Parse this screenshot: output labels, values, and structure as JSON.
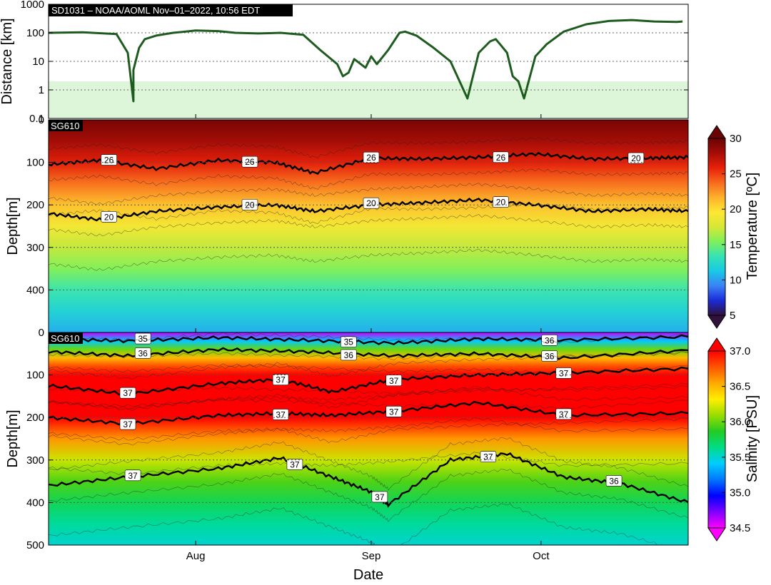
{
  "chart_data": [
    {
      "type": "line",
      "name": "distance",
      "header": "SD1031   –   NOAA/AOML   Nov–01–2022, 10:56 EDT",
      "ylabel": "Distance [km]",
      "yscale": "log",
      "ylim": [
        0.1,
        1000
      ],
      "yticks": [
        "0.1",
        "1",
        "10",
        "100",
        "1000"
      ],
      "xlim": [
        "2022-07-06",
        "2022-10-27"
      ],
      "shaded_band_km": [
        0.1,
        2
      ],
      "line_color": "#1e5b1e",
      "band_color": "#ddf5d8",
      "x": [
        "2022-07-06",
        "2022-07-12",
        "2022-07-18",
        "2022-07-20",
        "2022-07-21",
        "2022-07-21",
        "2022-07-22",
        "2022-07-23",
        "2022-07-25",
        "2022-07-28",
        "2022-08-01",
        "2022-08-05",
        "2022-08-08",
        "2022-08-12",
        "2022-08-16",
        "2022-08-20",
        "2022-08-23",
        "2022-08-26",
        "2022-08-27",
        "2022-08-28",
        "2022-08-29",
        "2022-08-31",
        "2022-09-01",
        "2022-09-02",
        "2022-09-04",
        "2022-09-06",
        "2022-09-07",
        "2022-09-09",
        "2022-09-12",
        "2022-09-15",
        "2022-09-18",
        "2022-09-20",
        "2022-09-22",
        "2022-09-23",
        "2022-09-24",
        "2022-09-25",
        "2022-09-26",
        "2022-09-27",
        "2022-09-28",
        "2022-09-30",
        "2022-10-02",
        "2022-10-05",
        "2022-10-09",
        "2022-10-13",
        "2022-10-17",
        "2022-10-21",
        "2022-10-25",
        "2022-10-26"
      ],
      "values": [
        100,
        105,
        90,
        20,
        0.4,
        5,
        30,
        60,
        80,
        100,
        120,
        115,
        100,
        95,
        100,
        85,
        25,
        8,
        3,
        4,
        12,
        6,
        15,
        8,
        25,
        100,
        110,
        80,
        30,
        10,
        0.5,
        20,
        50,
        60,
        35,
        20,
        3,
        2,
        0.5,
        15,
        40,
        110,
        200,
        260,
        280,
        250,
        240,
        250
      ]
    },
    {
      "type": "heatmap",
      "name": "temperature",
      "tag": "SG610",
      "ylabel": "Depth[m]",
      "xlabel": "",
      "ylim": [
        0,
        500
      ],
      "y_inverted": true,
      "yticks": [
        "0",
        "100",
        "200",
        "300",
        "400"
      ],
      "colorbar_label": "Temperature [ºC]",
      "colorbar_range": [
        5,
        30
      ],
      "colorbar_ticks": [
        "5",
        "10",
        "15",
        "20",
        "25",
        "30"
      ],
      "colormap": [
        "#30123b",
        "#1b2bd6",
        "#3b82f6",
        "#18c9e6",
        "#36e3b4",
        "#7ff05a",
        "#d7e735",
        "#fee733",
        "#fdb12b",
        "#f76a1d",
        "#e8210a",
        "#a50d07",
        "#6a0303"
      ],
      "profile_depths": [
        0,
        50,
        100,
        150,
        200,
        250,
        300,
        350,
        400,
        450,
        500
      ],
      "profile_temps": [
        29.5,
        28,
        26,
        23.5,
        21,
        19,
        17,
        15.5,
        13.5,
        12,
        10.5
      ],
      "contour_labels": [
        "26",
        "26",
        "26",
        "26",
        "20",
        "20",
        "20",
        "20",
        "20"
      ],
      "contours": [
        {
          "level": 26,
          "bold": true,
          "x": [
            "2022-07-06",
            "2022-07-15",
            "2022-07-25",
            "2022-08-05",
            "2022-08-15",
            "2022-08-22",
            "2022-09-01",
            "2022-09-10",
            "2022-09-20",
            "2022-09-30",
            "2022-10-10",
            "2022-10-20",
            "2022-10-27"
          ],
          "depth": [
            105,
            95,
            115,
            95,
            100,
            125,
            90,
            92,
            88,
            80,
            92,
            90,
            88
          ]
        },
        {
          "level": 20,
          "bold": true,
          "x": [
            "2022-07-06",
            "2022-07-15",
            "2022-07-25",
            "2022-08-05",
            "2022-08-15",
            "2022-08-22",
            "2022-09-01",
            "2022-09-10",
            "2022-09-20",
            "2022-09-30",
            "2022-10-10",
            "2022-10-20",
            "2022-10-27"
          ],
          "depth": [
            220,
            235,
            215,
            205,
            200,
            215,
            200,
            195,
            188,
            200,
            215,
            210,
            215
          ]
        }
      ]
    },
    {
      "type": "heatmap",
      "name": "salinity",
      "tag": "SG610",
      "ylabel": "Depth[m]",
      "xlabel": "Date",
      "ylim": [
        0,
        500
      ],
      "y_inverted": true,
      "yticks": [
        "0",
        "100",
        "200",
        "300",
        "400",
        "500"
      ],
      "xticks": [
        "Aug",
        "Sep",
        "Oct"
      ],
      "xtick_dates": [
        "2022-08-01",
        "2022-09-01",
        "2022-10-01"
      ],
      "colorbar_label": "Salinity [PSU]",
      "colorbar_range": [
        34.5,
        37.0
      ],
      "colorbar_ticks": [
        "34.5",
        "35.0",
        "35.5",
        "36.0",
        "36.5",
        "37.0"
      ],
      "colormap": [
        "#ff00ff",
        "#7f00ff",
        "#0000ff",
        "#0077ff",
        "#00ccff",
        "#00dd88",
        "#22cc22",
        "#99dd00",
        "#ffee00",
        "#ffaa00",
        "#ff5500",
        "#ff0000"
      ],
      "profile_depths": [
        0,
        20,
        40,
        60,
        80,
        100,
        150,
        200,
        250,
        300,
        350,
        400,
        450,
        500
      ],
      "profile_salinity": [
        34.6,
        35.4,
        36.0,
        36.5,
        36.8,
        37.05,
        37.15,
        37.0,
        36.6,
        36.2,
        35.95,
        35.75,
        35.6,
        35.5
      ],
      "contour_labels": [
        "35",
        "35",
        "36",
        "36",
        "36",
        "36",
        "37",
        "37",
        "37",
        "37",
        "37",
        "37",
        "37",
        "37",
        "37",
        "37",
        "37",
        "37",
        "36",
        "36",
        "36",
        "36",
        "36",
        "36",
        "36",
        "36",
        "36"
      ],
      "contours": [
        {
          "level": 35,
          "bold": true,
          "x": [
            "2022-07-06",
            "2022-07-20",
            "2022-08-05",
            "2022-08-20",
            "2022-09-05",
            "2022-09-20",
            "2022-10-05",
            "2022-10-27"
          ],
          "depth": [
            15,
            20,
            12,
            18,
            25,
            15,
            18,
            10
          ]
        },
        {
          "level": 36,
          "bold": true,
          "x": [
            "2022-07-06",
            "2022-07-20",
            "2022-08-05",
            "2022-08-20",
            "2022-09-05",
            "2022-09-20",
            "2022-10-05",
            "2022-10-27"
          ],
          "depth": [
            45,
            55,
            40,
            45,
            55,
            50,
            60,
            42
          ]
        },
        {
          "level": 37,
          "bold": true,
          "x": [
            "2022-07-06",
            "2022-07-20",
            "2022-08-05",
            "2022-08-16",
            "2022-08-25",
            "2022-09-05",
            "2022-09-20",
            "2022-10-05",
            "2022-10-27"
          ],
          "depth": [
            125,
            145,
            120,
            110,
            140,
            110,
            100,
            95,
            85
          ]
        },
        {
          "level": 37,
          "bold": true,
          "x": [
            "2022-07-06",
            "2022-07-20",
            "2022-08-05",
            "2022-08-16",
            "2022-08-25",
            "2022-09-05",
            "2022-09-20",
            "2022-10-05",
            "2022-10-27"
          ],
          "depth": [
            200,
            215,
            195,
            190,
            195,
            185,
            165,
            195,
            190
          ]
        },
        {
          "level": 36,
          "bold": true,
          "x": [
            "2022-07-06",
            "2022-07-20",
            "2022-08-05",
            "2022-08-16",
            "2022-08-25",
            "2022-09-01",
            "2022-09-04",
            "2022-09-15",
            "2022-09-25",
            "2022-10-05",
            "2022-10-15",
            "2022-10-27"
          ],
          "depth": [
            360,
            340,
            320,
            295,
            340,
            375,
            405,
            300,
            285,
            340,
            355,
            400
          ]
        }
      ]
    }
  ]
}
